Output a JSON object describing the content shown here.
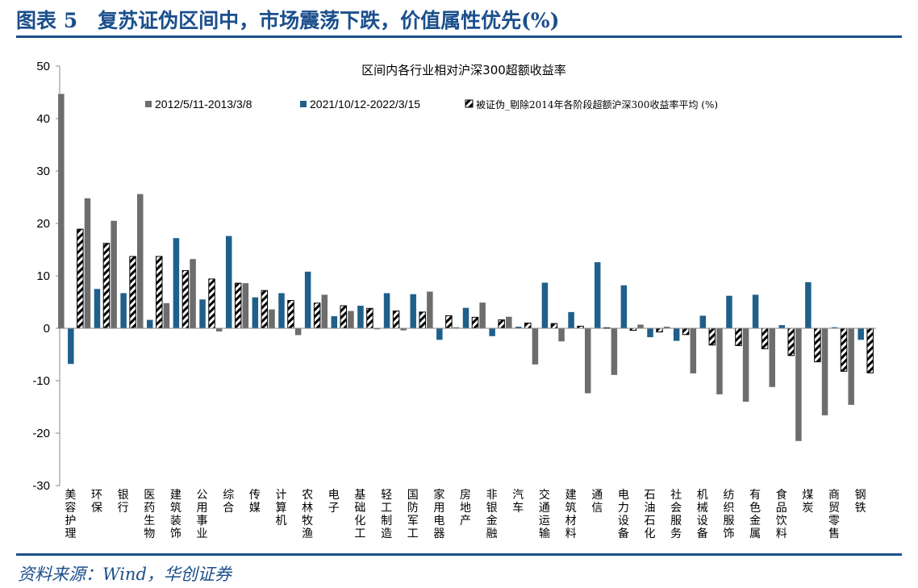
{
  "figure_title": "图表 5　复苏证伪区间中，市场震荡下跌，价值属性优先(%)",
  "source": "资料来源：Wind，华创证券",
  "chart_data": {
    "type": "bar",
    "title": "区间内各行业相对沪深300超额收益率",
    "ylim": [
      -30,
      50
    ],
    "yticks": [
      50,
      40,
      30,
      20,
      10,
      0,
      -10,
      -20,
      -30
    ],
    "legend_position": "top",
    "grid": false,
    "categories": [
      "美容护理",
      "环保",
      "银行",
      "医药生物",
      "建筑装饰",
      "公用事业",
      "综合",
      "传媒",
      "计算机",
      "农林牧渔",
      "电子",
      "基础化工",
      "轻工制造",
      "国防军工",
      "家用电器",
      "房地产",
      "非银金融",
      "汽车",
      "交通运输",
      "建筑材料",
      "通信",
      "电力设备",
      "石油石化",
      "社会服务",
      "机械设备",
      "纺织服饰",
      "有色金属",
      "食品饮料",
      "煤炭",
      "商贸零售",
      "钢铁"
    ],
    "series": [
      {
        "name": "2012/5/11-2013/3/8",
        "color": "#6d6d6d",
        "pattern": "solid",
        "values": [
          44.7,
          24.8,
          20.5,
          25.6,
          4.8,
          13.2,
          -0.6,
          8.6,
          3.6,
          -1.3,
          6.4,
          3.3,
          -0.2,
          -0.4,
          7.0,
          0.2,
          4.9,
          2.2,
          -6.9,
          -2.5,
          -12.4,
          -8.9,
          0.7,
          0.3,
          -8.6,
          -12.6,
          -14.0,
          -11.2,
          -21.5,
          -16.6,
          -14.6
        ]
      },
      {
        "name": "2021/10/12-2022/3/15",
        "color": "#1f5f8b",
        "pattern": "solid",
        "values": [
          -6.8,
          7.5,
          6.7,
          1.6,
          17.2,
          5.5,
          17.6,
          5.9,
          6.7,
          10.8,
          2.3,
          4.3,
          6.7,
          6.5,
          -2.2,
          3.9,
          -1.5,
          0.3,
          8.7,
          3.1,
          12.6,
          8.2,
          -1.7,
          -2.4,
          2.4,
          6.2,
          6.4,
          0.6,
          8.8,
          0.2,
          -2.2
        ]
      },
      {
        "name": "被证伪_剔除2014年各阶段超额沪深300收益率平均 (%)",
        "color": "#000000",
        "pattern": "diagonal-hatch",
        "values": [
          18.9,
          16.2,
          13.7,
          13.7,
          11.0,
          9.4,
          8.6,
          7.2,
          5.3,
          4.8,
          4.3,
          3.8,
          3.3,
          3.1,
          2.4,
          2.1,
          1.6,
          1.0,
          0.9,
          0.4,
          0.1,
          -0.4,
          -0.7,
          -1.2,
          -3.2,
          -3.3,
          -3.9,
          -5.2,
          -6.4,
          -8.2,
          -8.5
        ]
      }
    ]
  }
}
